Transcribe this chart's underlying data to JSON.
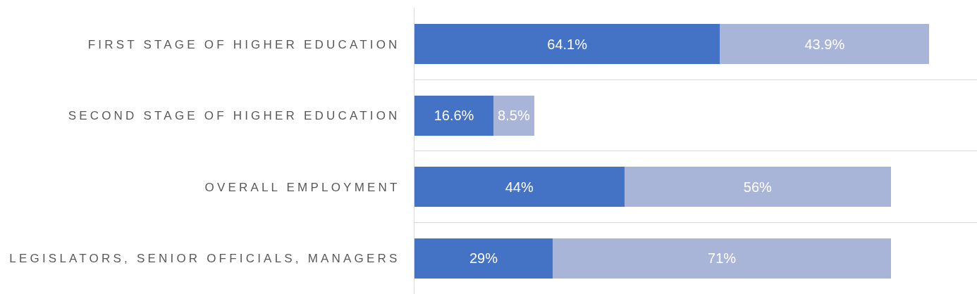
{
  "chart_data": {
    "type": "bar",
    "orientation": "horizontal",
    "stacked": true,
    "categories": [
      "FIRST STAGE OF HIGHER EDUCATION",
      "SECOND STAGE OF HIGHER EDUCATION",
      "OVERALL EMPLOYMENT",
      "LEGISLATORS, SENIOR OFFICIALS, MANAGERS"
    ],
    "series": [
      {
        "color": "#4472c4",
        "values": [
          64.1,
          16.6,
          44,
          29
        ],
        "value_labels": [
          "64.1%",
          "16.6%",
          "44%",
          "29%"
        ]
      },
      {
        "color": "#a9b4d9",
        "values": [
          43.9,
          8.5,
          56,
          71
        ],
        "value_labels": [
          "43.9%",
          "8.5%",
          "56%",
          "71%"
        ]
      }
    ],
    "xlim": [
      0,
      118
    ],
    "grid": "y",
    "tick_labels": "y"
  }
}
